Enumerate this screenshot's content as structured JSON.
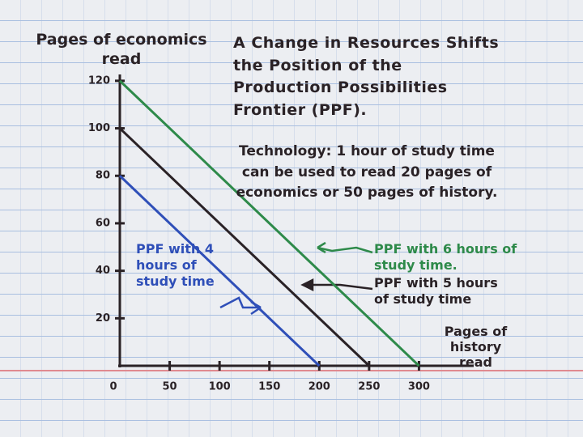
{
  "chart_data": {
    "type": "line",
    "title": "A Change in Resources Shifts the Position of the Production Possibilities Frontier (PPF).",
    "subtitle": "Technology: 1 hour of study time can be used to read 20 pages of economics or 50 pages of history.",
    "y_label": "Pages of economics read",
    "x_label": "Pages of history read",
    "xlim": [
      0,
      350
    ],
    "ylim": [
      0,
      122
    ],
    "xticks": [
      0,
      50,
      100,
      150,
      200,
      250,
      300
    ],
    "yticks": [
      20,
      40,
      60,
      80,
      100,
      120
    ],
    "series": [
      {
        "name": "PPF with 4 hours of study time",
        "color": "#2f4fb8",
        "x": [
          0,
          200
        ],
        "values": [
          80,
          0
        ]
      },
      {
        "name": "PPF with 5 hours of study time",
        "color": "#2a2226",
        "x": [
          0,
          250
        ],
        "values": [
          100,
          0
        ]
      },
      {
        "name": "PPF with 6 hours of study time.",
        "color": "#2e8a4a",
        "x": [
          0,
          300
        ],
        "values": [
          120,
          0
        ]
      }
    ]
  }
}
